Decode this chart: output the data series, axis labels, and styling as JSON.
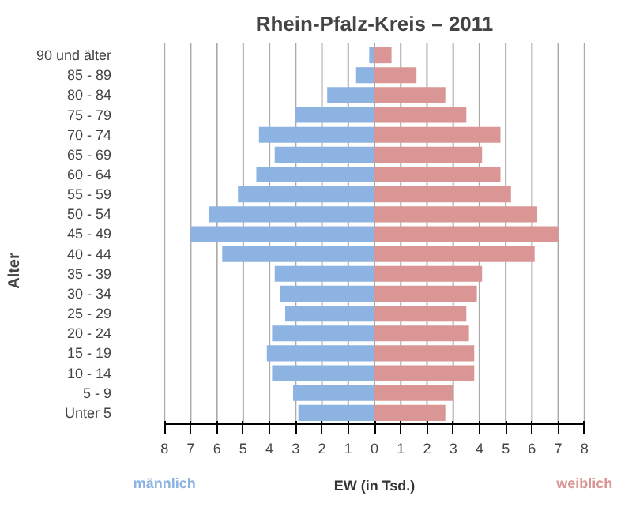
{
  "chart_data": {
    "type": "bar",
    "orientation": "horizontal",
    "title": "Rhein-Pfalz-Kreis – 2011",
    "xlabel": "EW (in Tsd.)",
    "ylabel": "Alter",
    "categories": [
      "90 und älter",
      "85 - 89",
      "80 - 84",
      "75 - 79",
      "70 - 74",
      "65 - 69",
      "60 - 64",
      "55 - 59",
      "50 - 54",
      "45 - 49",
      "40 - 44",
      "35 - 39",
      "30 - 34",
      "25 - 29",
      "20 - 24",
      "15 - 19",
      "10 - 14",
      "5 - 9",
      "Unter 5"
    ],
    "series": [
      {
        "name": "männlich",
        "color": "#8db3e2",
        "values": [
          -0.2,
          -0.7,
          -1.8,
          -3.0,
          -4.4,
          -3.8,
          -4.5,
          -5.2,
          -6.3,
          -7.0,
          -5.8,
          -3.8,
          -3.6,
          -3.4,
          -3.9,
          -4.1,
          -3.9,
          -3.1,
          -2.9
        ]
      },
      {
        "name": "weiblich",
        "color": "#d99694",
        "values": [
          0.65,
          1.6,
          2.7,
          3.5,
          4.8,
          4.1,
          4.8,
          5.2,
          6.2,
          7.0,
          6.1,
          4.1,
          3.9,
          3.5,
          3.6,
          3.8,
          3.8,
          3.0,
          2.7
        ]
      }
    ],
    "xlim": [
      -8,
      8
    ],
    "xticks": [
      {
        "value": -8,
        "label": "8"
      },
      {
        "value": -7,
        "label": "7"
      },
      {
        "value": -6,
        "label": "6"
      },
      {
        "value": -5,
        "label": "5"
      },
      {
        "value": -4,
        "label": "4"
      },
      {
        "value": -3,
        "label": "3"
      },
      {
        "value": -2,
        "label": "2"
      },
      {
        "value": -1,
        "label": "1"
      },
      0,
      1,
      2,
      3,
      4,
      5,
      6,
      7,
      8
    ],
    "grid": "x",
    "stacked": true
  }
}
